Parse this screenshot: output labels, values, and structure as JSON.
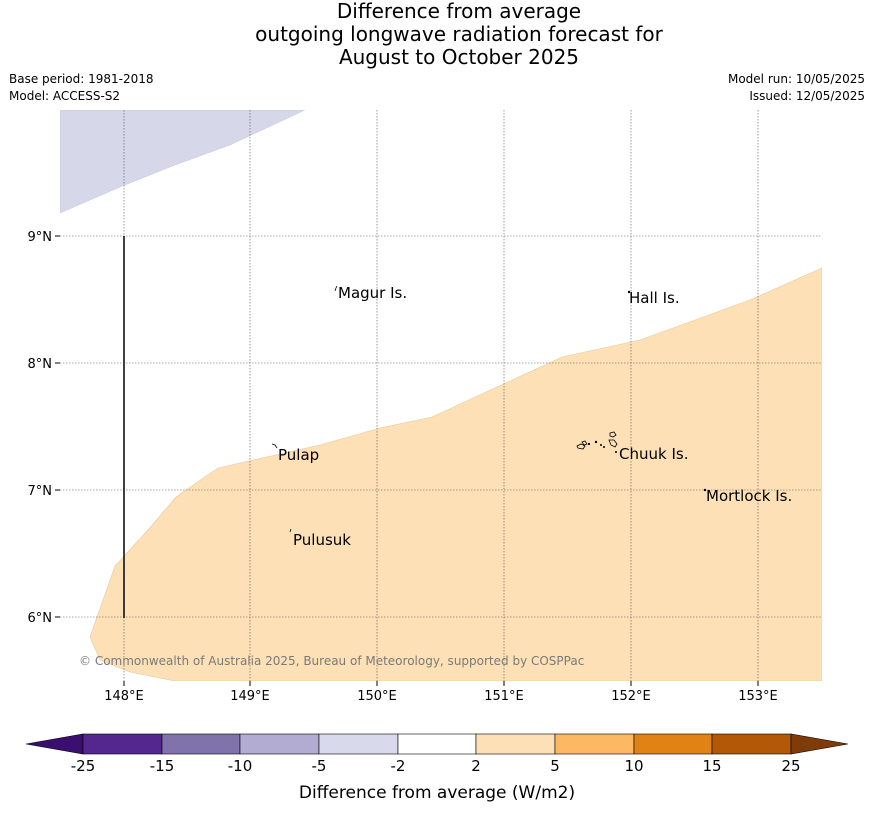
{
  "title_lines": [
    "Difference from average",
    "outgoing longwave radiation forecast for",
    "August to October 2025"
  ],
  "meta": {
    "base_period": "Base period: 1981-2018",
    "model": "Model: ACCESS-S2",
    "model_run": "Model run: 10/05/2025",
    "issued": "Issued: 12/05/2025"
  },
  "map": {
    "lat_labels": [
      "9°N",
      "8°N",
      "7°N",
      "6°N"
    ],
    "lon_labels": [
      "148°E",
      "149°E",
      "150°E",
      "151°E",
      "152°E",
      "153°E"
    ],
    "places": [
      "Magur Is.",
      "Hall Is.",
      "Pulap",
      "Chuuk Is.",
      "Mortlock Is.",
      "Pulusuk"
    ],
    "copyright": "© Commonwealth of Australia 2025, Bureau of Meteorology, supported by COSPPac",
    "anomaly_fill_colors": {
      "light_purple": "#d6d7e8",
      "light_orange": "#fde0b5"
    }
  },
  "colorbar": {
    "label": "Difference from average (W/m2)",
    "ticks": [
      "-25",
      "-15",
      "-10",
      "-5",
      "-2",
      "2",
      "5",
      "10",
      "15",
      "25"
    ],
    "colors": [
      "#3b0f6f",
      "#54278f",
      "#8073ac",
      "#b2abd2",
      "#d8daeb",
      "#ffffff",
      "#fee0b6",
      "#fdb863",
      "#e08214",
      "#b35806",
      "#7f3b08"
    ]
  }
}
